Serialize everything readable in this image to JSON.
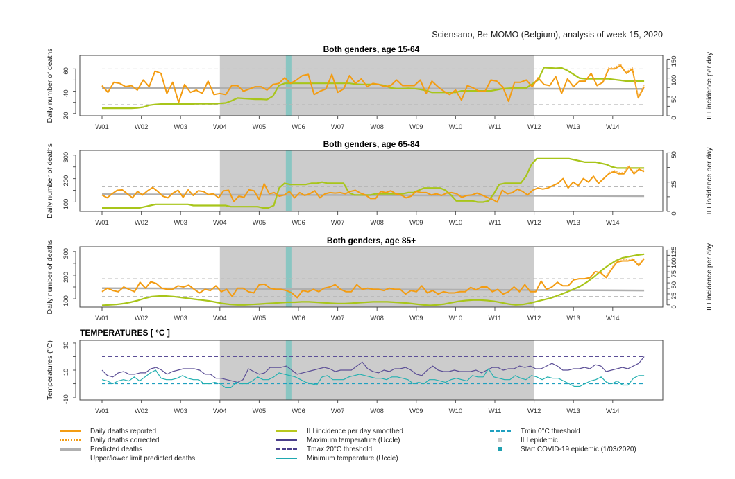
{
  "source_title": "Sciensano, Be-MOMO (Belgium), analysis of week 15, 2020",
  "weeks": [
    "W01",
    "W02",
    "W03",
    "W04",
    "W05",
    "W06",
    "W07",
    "W08",
    "W09",
    "W10",
    "W11",
    "W12",
    "W13",
    "W14"
  ],
  "ili_epidemic_weeks": [
    "W04",
    "W12"
  ],
  "covid_start_week": 5.75,
  "colors": {
    "reported": "#F39C12",
    "corrected": "#F39C12",
    "predicted": "#B0B0B0",
    "limits": "#B8B8B8",
    "ili": "#A8C51A",
    "tmax": "#5B4E96",
    "tmin": "#23B0B0",
    "epidemic_shade": "#CCCCCC",
    "covid_bar": "#7CC4C0"
  },
  "chart_data": [
    {
      "type": "line",
      "title": "Both genders, age 15-64",
      "ylabel": "Daily number of deaths",
      "y2label": "ILI incidence per day",
      "ylim": [
        18,
        72
      ],
      "yticks": [
        20,
        40,
        60
      ],
      "y2lim": [
        0,
        160
      ],
      "y2ticks": [
        0,
        50,
        100,
        150
      ],
      "predicted": 43,
      "upper_limit": 60,
      "lower_limit": 28,
      "predicted_end": 42,
      "reported": [
        45,
        39,
        48,
        47,
        44,
        45,
        41,
        50,
        44,
        58,
        56,
        38,
        48,
        30,
        46,
        39,
        41,
        38,
        49,
        37,
        38,
        37,
        45,
        45,
        40,
        42,
        44,
        44,
        41,
        46,
        47,
        52,
        47,
        50,
        54,
        55,
        37,
        40,
        42,
        55,
        39,
        42,
        54,
        47,
        51,
        44,
        47,
        46,
        44,
        45,
        50,
        45,
        45,
        45,
        50,
        38,
        49,
        44,
        40,
        37,
        41,
        32,
        45,
        43,
        40,
        40,
        50,
        49,
        44,
        31,
        48,
        48,
        50,
        44,
        52,
        46,
        45,
        53,
        38,
        51,
        44,
        49,
        49,
        56,
        45,
        48,
        60,
        60,
        63,
        56,
        60,
        34,
        44
      ],
      "ili": [
        20,
        20,
        20,
        20,
        20,
        20,
        21,
        23,
        28,
        30,
        31,
        31,
        31,
        31,
        31,
        31,
        32,
        32,
        32,
        32,
        33,
        34,
        40,
        47,
        46,
        45,
        44,
        44,
        43,
        52,
        80,
        86,
        86,
        86,
        86,
        86,
        86,
        86,
        86,
        86,
        86,
        86,
        86,
        84,
        83,
        83,
        83,
        83,
        80,
        74,
        72,
        72,
        73,
        72,
        70,
        67,
        62,
        62,
        62,
        62,
        62,
        66,
        66,
        66,
        66,
        66,
        66,
        69,
        72,
        73,
        74,
        74,
        74,
        84,
        95,
        128,
        127,
        126,
        127,
        120,
        110,
        100,
        98,
        98,
        98,
        98,
        98,
        96,
        94,
        92,
        92,
        92,
        92
      ],
      "ili_count": 93
    },
    {
      "type": "line",
      "title": "Both genders, age 65-84",
      "ylabel": "Daily number of deaths",
      "y2label": "ILI incidence per day",
      "ylim": [
        60,
        320
      ],
      "yticks": [
        100,
        200,
        300
      ],
      "y2lim": [
        0,
        52
      ],
      "y2ticks": [
        0,
        25,
        50
      ],
      "predicted": 133,
      "upper_limit": 165,
      "lower_limit": 100,
      "predicted_end": 125,
      "reported": [
        130,
        118,
        135,
        150,
        152,
        135,
        118,
        145,
        130,
        148,
        162,
        145,
        125,
        118,
        138,
        150,
        120,
        152,
        128,
        148,
        145,
        132,
        135,
        118,
        148,
        150,
        102,
        125,
        120,
        152,
        148,
        112,
        178,
        135,
        140,
        125,
        130,
        145,
        118,
        140,
        128,
        135,
        148,
        118,
        135,
        140,
        138,
        140,
        135,
        145,
        150,
        138,
        130,
        115,
        115,
        145,
        140,
        148,
        135,
        130,
        118,
        125,
        145,
        140,
        140,
        130,
        135,
        128,
        138,
        140,
        135,
        120,
        128,
        130,
        138,
        130,
        120,
        112,
        100,
        150,
        135,
        140,
        155,
        145,
        130,
        150,
        160,
        155,
        160,
        170,
        180,
        200,
        160,
        185,
        170,
        200,
        185,
        210,
        180,
        200,
        220,
        230,
        220,
        220,
        250,
        220,
        240,
        230
      ],
      "ili": [
        3,
        3,
        3,
        3,
        3,
        3,
        3,
        3,
        4,
        5,
        6,
        6,
        6,
        6,
        6,
        6,
        6,
        5,
        5,
        5,
        5,
        5,
        5,
        5,
        4,
        4,
        4,
        4,
        4,
        4,
        3,
        3,
        5,
        20,
        24,
        23,
        23,
        23,
        23,
        24,
        24,
        25,
        24,
        24,
        24,
        24,
        16,
        14,
        14,
        14,
        14,
        15,
        15,
        15,
        15,
        15,
        15,
        16,
        16,
        18,
        20,
        20,
        20,
        20,
        18,
        14,
        9,
        9,
        9,
        9,
        8,
        8,
        9,
        15,
        23,
        24,
        24,
        24,
        24,
        30,
        40,
        45,
        45,
        45,
        45,
        45,
        45,
        45,
        44,
        43,
        42,
        42,
        42,
        41,
        40,
        38,
        37,
        37,
        37,
        37,
        37,
        37
      ],
      "ili_count": 102
    },
    {
      "type": "line",
      "title": "Both genders, age 85+",
      "ylabel": "Daily number of deaths",
      "y2label": "ILI incidence per day",
      "ylim": [
        65,
        320
      ],
      "yticks": [
        100,
        200,
        300
      ],
      "y2lim": [
        -5,
        132
      ],
      "y2ticks": [
        0,
        25,
        50,
        75,
        100,
        125
      ],
      "predicted": 145,
      "upper_limit": 185,
      "lower_limit": 110,
      "predicted_end": 135,
      "reported": [
        130,
        145,
        135,
        130,
        150,
        140,
        130,
        170,
        145,
        172,
        165,
        145,
        140,
        140,
        155,
        150,
        158,
        140,
        125,
        140,
        135,
        155,
        130,
        140,
        110,
        145,
        145,
        130,
        125,
        160,
        162,
        145,
        140,
        140,
        135,
        125,
        105,
        135,
        130,
        140,
        130,
        145,
        150,
        160,
        140,
        130,
        130,
        160,
        140,
        145,
        140,
        140,
        135,
        145,
        140,
        140,
        120,
        135,
        130,
        155,
        125,
        135,
        120,
        130,
        125,
        125,
        130,
        130,
        148,
        138,
        150,
        150,
        130,
        140,
        120,
        130,
        150,
        130,
        160,
        130,
        130,
        175,
        140,
        150,
        170,
        155,
        155,
        180,
        185,
        185,
        190,
        215,
        210,
        190,
        225,
        255,
        260,
        260,
        265,
        240,
        270
      ],
      "ili": [
        -1,
        0,
        1,
        3,
        6,
        10,
        15,
        19,
        20,
        20,
        19,
        17,
        15,
        13,
        11,
        9,
        6,
        3,
        1,
        0,
        0,
        1,
        2,
        3,
        4,
        5,
        6,
        6,
        7,
        7,
        6,
        5,
        4,
        3,
        3,
        4,
        5,
        6,
        7,
        7,
        7,
        6,
        5,
        4,
        2,
        0,
        -1,
        0,
        2,
        5,
        8,
        10,
        11,
        11,
        10,
        8,
        5,
        2,
        0,
        1,
        4,
        8,
        12,
        16,
        22,
        28,
        35,
        42,
        52,
        64,
        78,
        90,
        100,
        107,
        110,
        113,
        115
      ],
      "ili_count": 77
    },
    {
      "type": "line",
      "title": "TEMPERATURES [ °C ]",
      "ylabel": "Temperatures (°C)",
      "ylim": [
        -12,
        32
      ],
      "yticks": [
        -10,
        10,
        30
      ],
      "tmax_threshold": 20,
      "tmin_threshold": 0,
      "tmax": [
        10,
        6,
        5,
        8,
        9,
        7,
        7,
        8,
        8,
        11,
        12,
        10,
        7,
        9,
        10,
        11,
        11,
        11,
        10,
        7,
        7,
        4,
        4,
        3,
        2,
        1,
        3,
        11,
        9,
        7,
        8,
        12,
        12,
        12,
        13,
        10,
        7,
        8,
        9,
        10,
        11,
        12,
        11,
        9,
        10,
        10,
        10,
        13,
        16,
        11,
        9,
        8,
        10,
        9,
        11,
        11,
        12,
        10,
        7,
        6,
        10,
        13,
        10,
        9,
        9,
        10,
        9,
        9,
        9,
        10,
        8,
        10,
        12,
        12,
        10,
        11,
        11,
        13,
        12,
        13,
        11,
        11,
        13,
        15,
        13,
        10,
        10,
        11,
        11,
        12,
        11,
        14,
        13,
        9,
        10,
        11,
        12,
        11,
        13,
        15,
        20
      ],
      "tmin": [
        3,
        2,
        0,
        2,
        3,
        2,
        5,
        2,
        5,
        8,
        10,
        4,
        3,
        3,
        4,
        6,
        4,
        3,
        3,
        0,
        0,
        1,
        0,
        -3,
        -3,
        1,
        0,
        0,
        2,
        5,
        3,
        3,
        5,
        8,
        7,
        6,
        5,
        3,
        1,
        0,
        -1,
        5,
        6,
        3,
        3,
        3,
        5,
        6,
        7,
        6,
        5,
        4,
        4,
        3,
        5,
        5,
        4,
        3,
        0,
        1,
        0,
        3,
        3,
        2,
        1,
        3,
        4,
        3,
        2,
        6,
        5,
        5,
        11,
        5,
        4,
        3,
        3,
        6,
        4,
        3,
        6,
        5,
        3,
        5,
        4,
        4,
        2,
        0,
        -2,
        -2,
        0,
        2,
        3,
        5,
        1,
        0,
        2,
        -1,
        -1,
        4,
        6,
        6
      ],
      "tmax_count": 101,
      "tmin_count": 102
    }
  ],
  "legend": {
    "col1": [
      "Daily deaths reported",
      "Daily deaths corrected",
      "Predicted deaths",
      "Upper/lower limit predicted deaths"
    ],
    "col2": [
      "ILI incidence per day smoothed",
      "Maximum temperature (Uccle)",
      "Tmax 20°C threshold",
      "Minimum temperature (Uccle)"
    ],
    "col3": [
      "Tmin 0°C threshold",
      "ILI epidemic",
      "Start COVID-19 epidemic (1/03/2020)"
    ]
  }
}
